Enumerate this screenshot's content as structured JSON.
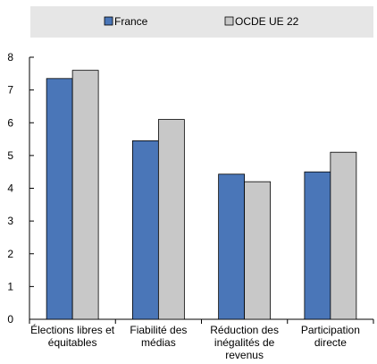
{
  "chart_data": {
    "type": "bar",
    "categories": [
      [
        "Élections libres et",
        "équitables"
      ],
      [
        "Fiabilité des",
        "médias"
      ],
      [
        "Réduction des",
        "inégalités de",
        "revenus"
      ],
      [
        "Participation",
        "directe"
      ]
    ],
    "series": [
      {
        "name": "France",
        "values": [
          7.35,
          5.45,
          4.43,
          4.5
        ]
      },
      {
        "name": "OCDE UE 22",
        "values": [
          7.6,
          6.1,
          4.2,
          5.1
        ]
      }
    ],
    "y_ticks": [
      "0",
      "1",
      "2",
      "3",
      "4",
      "5",
      "6",
      "7",
      "8"
    ],
    "ylim": [
      0,
      8
    ],
    "legend_placement": "top",
    "grid": false,
    "colors": {
      "France": "#4a76b8",
      "OCDE UE 22": "#c8c8c8",
      "legend_bg": "#e6e6e6",
      "bar_stroke": "#000000"
    }
  }
}
